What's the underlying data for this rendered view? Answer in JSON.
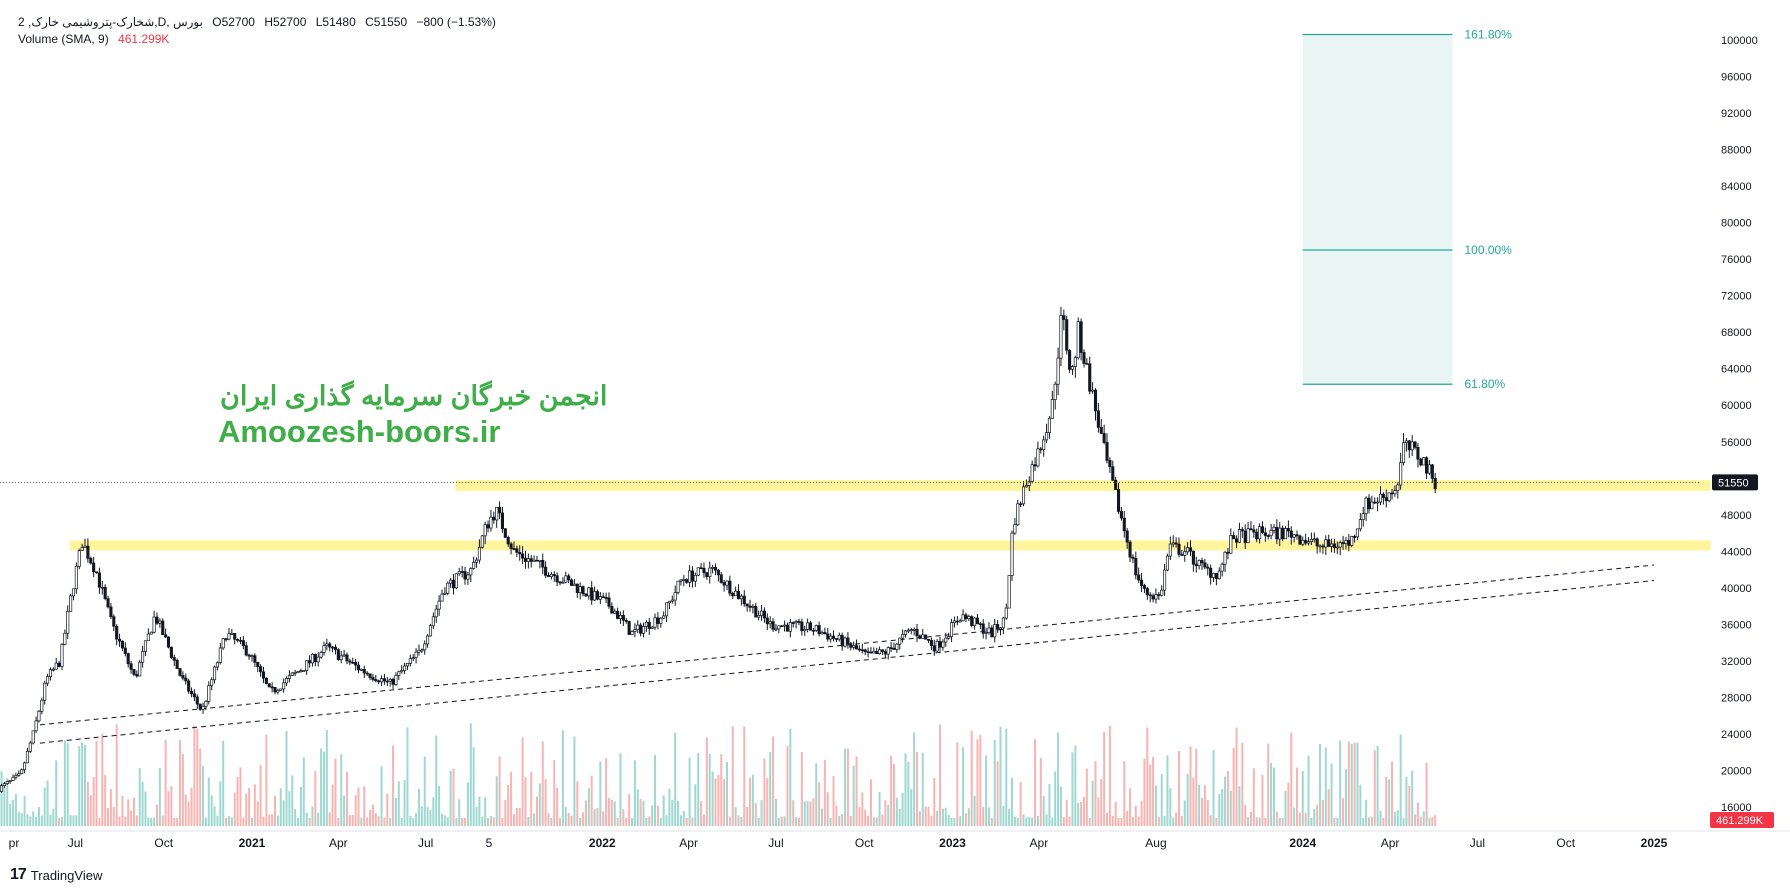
{
  "header": {
    "symbol_line": "2 ,شخارک-پتروشیمی خارک,D, بورس",
    "open": "O52700",
    "high": "H52700",
    "low": "L51480",
    "close": "C51550",
    "change": "−800 (−1.53%)",
    "volume_label": "Volume (SMA, 9)",
    "volume_value": "461.299K"
  },
  "watermark": {
    "line1": "انجمن خبرگان سرمایه گذاری ایران",
    "line2": "Amoozesh-boors.ir"
  },
  "footer": {
    "brand": "TradingView",
    "logo_text": "17"
  },
  "colors": {
    "up": "#26a69a",
    "down": "#ef5350",
    "candle": "#131722",
    "fib_fill": "#e8f5f2",
    "fib_line": "#26a69a",
    "zone": "#fff59d",
    "watermark": "#3fae49",
    "price_badge": "#131722",
    "volume_badge": "#f23645"
  },
  "chart_data": {
    "type": "candlestick",
    "interval": "D",
    "y_axis": {
      "ticks": [
        100000,
        96000,
        92000,
        88000,
        84000,
        80000,
        76000,
        72000,
        68000,
        64000,
        60000,
        56000,
        52000,
        48000,
        44000,
        40000,
        36000,
        32000,
        28000,
        24000,
        20000,
        16000
      ],
      "ylim": [
        15000,
        102000
      ],
      "position": "right",
      "last_price_label": "51550",
      "last_price": 51550
    },
    "x_axis": {
      "labels": [
        {
          "text": "pr",
          "date": "2020-04-28"
        },
        {
          "text": "Jul",
          "date": "2020-07-01"
        },
        {
          "text": "Oct",
          "date": "2020-10-01"
        },
        {
          "text": "2021",
          "date": "2021-01-01"
        },
        {
          "text": "Apr",
          "date": "2021-04-01"
        },
        {
          "text": "Jul",
          "date": "2021-07-01"
        },
        {
          "text": "5",
          "date": "2021-09-05"
        },
        {
          "text": "2022",
          "date": "2022-01-01"
        },
        {
          "text": "Apr",
          "date": "2022-04-01"
        },
        {
          "text": "Jul",
          "date": "2022-07-01"
        },
        {
          "text": "Oct",
          "date": "2022-10-01"
        },
        {
          "text": "2023",
          "date": "2023-01-01"
        },
        {
          "text": "Apr",
          "date": "2023-04-01"
        },
        {
          "text": "Aug",
          "date": "2023-08-01"
        },
        {
          "text": "2024",
          "date": "2024-01-01"
        },
        {
          "text": "Apr",
          "date": "2024-04-01"
        },
        {
          "text": "Jul",
          "date": "2024-07-01"
        },
        {
          "text": "Oct",
          "date": "2024-10-01"
        },
        {
          "text": "2025",
          "date": "2025-01-01"
        }
      ]
    },
    "price_path": [
      {
        "date": "2020-04-12",
        "price": 18000
      },
      {
        "date": "2020-05-05",
        "price": 19500
      },
      {
        "date": "2020-05-18",
        "price": 24000
      },
      {
        "date": "2020-06-01",
        "price": 30000
      },
      {
        "date": "2020-06-15",
        "price": 32000
      },
      {
        "date": "2020-06-28",
        "price": 40000
      },
      {
        "date": "2020-07-08",
        "price": 45000
      },
      {
        "date": "2020-07-22",
        "price": 42000
      },
      {
        "date": "2020-08-08",
        "price": 36000
      },
      {
        "date": "2020-09-01",
        "price": 30000
      },
      {
        "date": "2020-09-22",
        "price": 37000
      },
      {
        "date": "2020-10-20",
        "price": 30000
      },
      {
        "date": "2020-11-10",
        "price": 26500
      },
      {
        "date": "2020-12-05",
        "price": 35000
      },
      {
        "date": "2020-12-28",
        "price": 33000
      },
      {
        "date": "2021-01-20",
        "price": 28500
      },
      {
        "date": "2021-02-20",
        "price": 31000
      },
      {
        "date": "2021-03-20",
        "price": 33500
      },
      {
        "date": "2021-04-25",
        "price": 31000
      },
      {
        "date": "2021-05-25",
        "price": 29500
      },
      {
        "date": "2021-06-25",
        "price": 33000
      },
      {
        "date": "2021-07-20",
        "price": 40000
      },
      {
        "date": "2021-08-18",
        "price": 42000
      },
      {
        "date": "2021-09-03",
        "price": 47000
      },
      {
        "date": "2021-09-12",
        "price": 48500
      },
      {
        "date": "2021-10-01",
        "price": 44000
      },
      {
        "date": "2021-11-20",
        "price": 41000
      },
      {
        "date": "2022-01-10",
        "price": 38000
      },
      {
        "date": "2022-02-01",
        "price": 35000
      },
      {
        "date": "2022-03-05",
        "price": 37000
      },
      {
        "date": "2022-03-25",
        "price": 41000
      },
      {
        "date": "2022-04-25",
        "price": 42000
      },
      {
        "date": "2022-05-25",
        "price": 39000
      },
      {
        "date": "2022-06-25",
        "price": 36000
      },
      {
        "date": "2022-08-10",
        "price": 35500
      },
      {
        "date": "2022-09-10",
        "price": 34000
      },
      {
        "date": "2022-10-05",
        "price": 32500
      },
      {
        "date": "2022-10-25",
        "price": 33000
      },
      {
        "date": "2022-11-20",
        "price": 35500
      },
      {
        "date": "2022-12-15",
        "price": 33500
      },
      {
        "date": "2023-01-10",
        "price": 37000
      },
      {
        "date": "2023-02-10",
        "price": 35000
      },
      {
        "date": "2023-02-25",
        "price": 36500
      },
      {
        "date": "2023-03-05",
        "price": 47000
      },
      {
        "date": "2023-03-20",
        "price": 52000
      },
      {
        "date": "2023-04-01",
        "price": 55000
      },
      {
        "date": "2023-04-15",
        "price": 60000
      },
      {
        "date": "2023-04-25",
        "price": 70000
      },
      {
        "date": "2023-05-05",
        "price": 63000
      },
      {
        "date": "2023-05-12",
        "price": 68000
      },
      {
        "date": "2023-05-25",
        "price": 62000
      },
      {
        "date": "2023-06-10",
        "price": 54000
      },
      {
        "date": "2023-06-25",
        "price": 48000
      },
      {
        "date": "2023-07-10",
        "price": 42000
      },
      {
        "date": "2023-07-20",
        "price": 39500
      },
      {
        "date": "2023-08-05",
        "price": 39000
      },
      {
        "date": "2023-08-15",
        "price": 44500
      },
      {
        "date": "2023-09-01",
        "price": 44000
      },
      {
        "date": "2023-09-20",
        "price": 42000
      },
      {
        "date": "2023-10-05",
        "price": 41500
      },
      {
        "date": "2023-10-20",
        "price": 45500
      },
      {
        "date": "2023-11-20",
        "price": 46000
      },
      {
        "date": "2023-12-20",
        "price": 46000
      },
      {
        "date": "2024-01-20",
        "price": 44500
      },
      {
        "date": "2024-02-20",
        "price": 45000
      },
      {
        "date": "2024-03-05",
        "price": 49000
      },
      {
        "date": "2024-03-25",
        "price": 50000
      },
      {
        "date": "2024-04-08",
        "price": 51000
      },
      {
        "date": "2024-04-15",
        "price": 55500
      },
      {
        "date": "2024-04-25",
        "price": 55000
      },
      {
        "date": "2024-05-05",
        "price": 54000
      },
      {
        "date": "2024-05-15",
        "price": 52000
      },
      {
        "date": "2024-05-20",
        "price": 51550
      }
    ],
    "horizontal_zones": [
      {
        "name": "upper-zone",
        "from_date": "2021-08-01",
        "to_date": "2025-03-01",
        "price_low": 50600,
        "price_high": 51800
      },
      {
        "name": "lower-zone",
        "from_date": "2020-06-25",
        "to_date": "2025-03-01",
        "price_low": 44100,
        "price_high": 45200
      }
    ],
    "trendlines": [
      {
        "name": "trendline-1",
        "p1": {
          "date": "2020-05-25",
          "price": 25000
        },
        "p2": {
          "date": "2025-01-01",
          "price": 42500
        }
      },
      {
        "name": "trendline-2",
        "p1": {
          "date": "2020-05-25",
          "price": 23000
        },
        "p2": {
          "date": "2025-01-01",
          "price": 40800
        }
      }
    ],
    "fibonacci": {
      "from_date": "2024-01-01",
      "to_date": "2024-06-05",
      "levels": [
        {
          "label": "161.80%",
          "price": 100600
        },
        {
          "label": "100.00%",
          "price": 77000
        },
        {
          "label": "61.80%",
          "price": 62300
        }
      ]
    },
    "volume": {
      "last_label": "461.299K",
      "bars_count": 420,
      "max_height": 30000
    }
  }
}
